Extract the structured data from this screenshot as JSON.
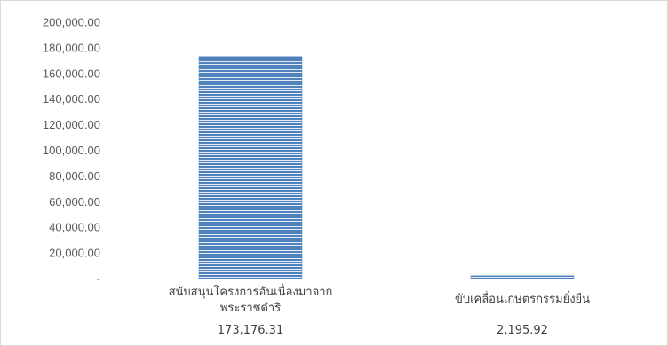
{
  "chart_data": {
    "type": "bar",
    "title": "",
    "xlabel": "",
    "ylabel": "",
    "categories": [
      [
        "สนับสนุนโครงการอันเนื่องมาจาก",
        "พระราชดำริ"
      ],
      [
        "ขับเคลื่อนเกษตรกรรมยั่งยืน"
      ]
    ],
    "values": [
      173176.31,
      2195.92
    ],
    "value_labels": [
      "173,176.31",
      "2,195.92"
    ],
    "ylim": [
      0,
      200000
    ],
    "y_ticks": [
      "-",
      "20,000.00",
      "40,000.00",
      "60,000.00",
      "80,000.00",
      "100,000.00",
      "120,000.00",
      "140,000.00",
      "160,000.00",
      "180,000.00",
      "200,000.00"
    ],
    "grid": false,
    "legend": "none",
    "bar_color": "#4f81bd",
    "bar_pattern": "horizontal-stripes",
    "bar_stripe_color": "#ffffff",
    "axis_color": "#bfbfbf"
  }
}
